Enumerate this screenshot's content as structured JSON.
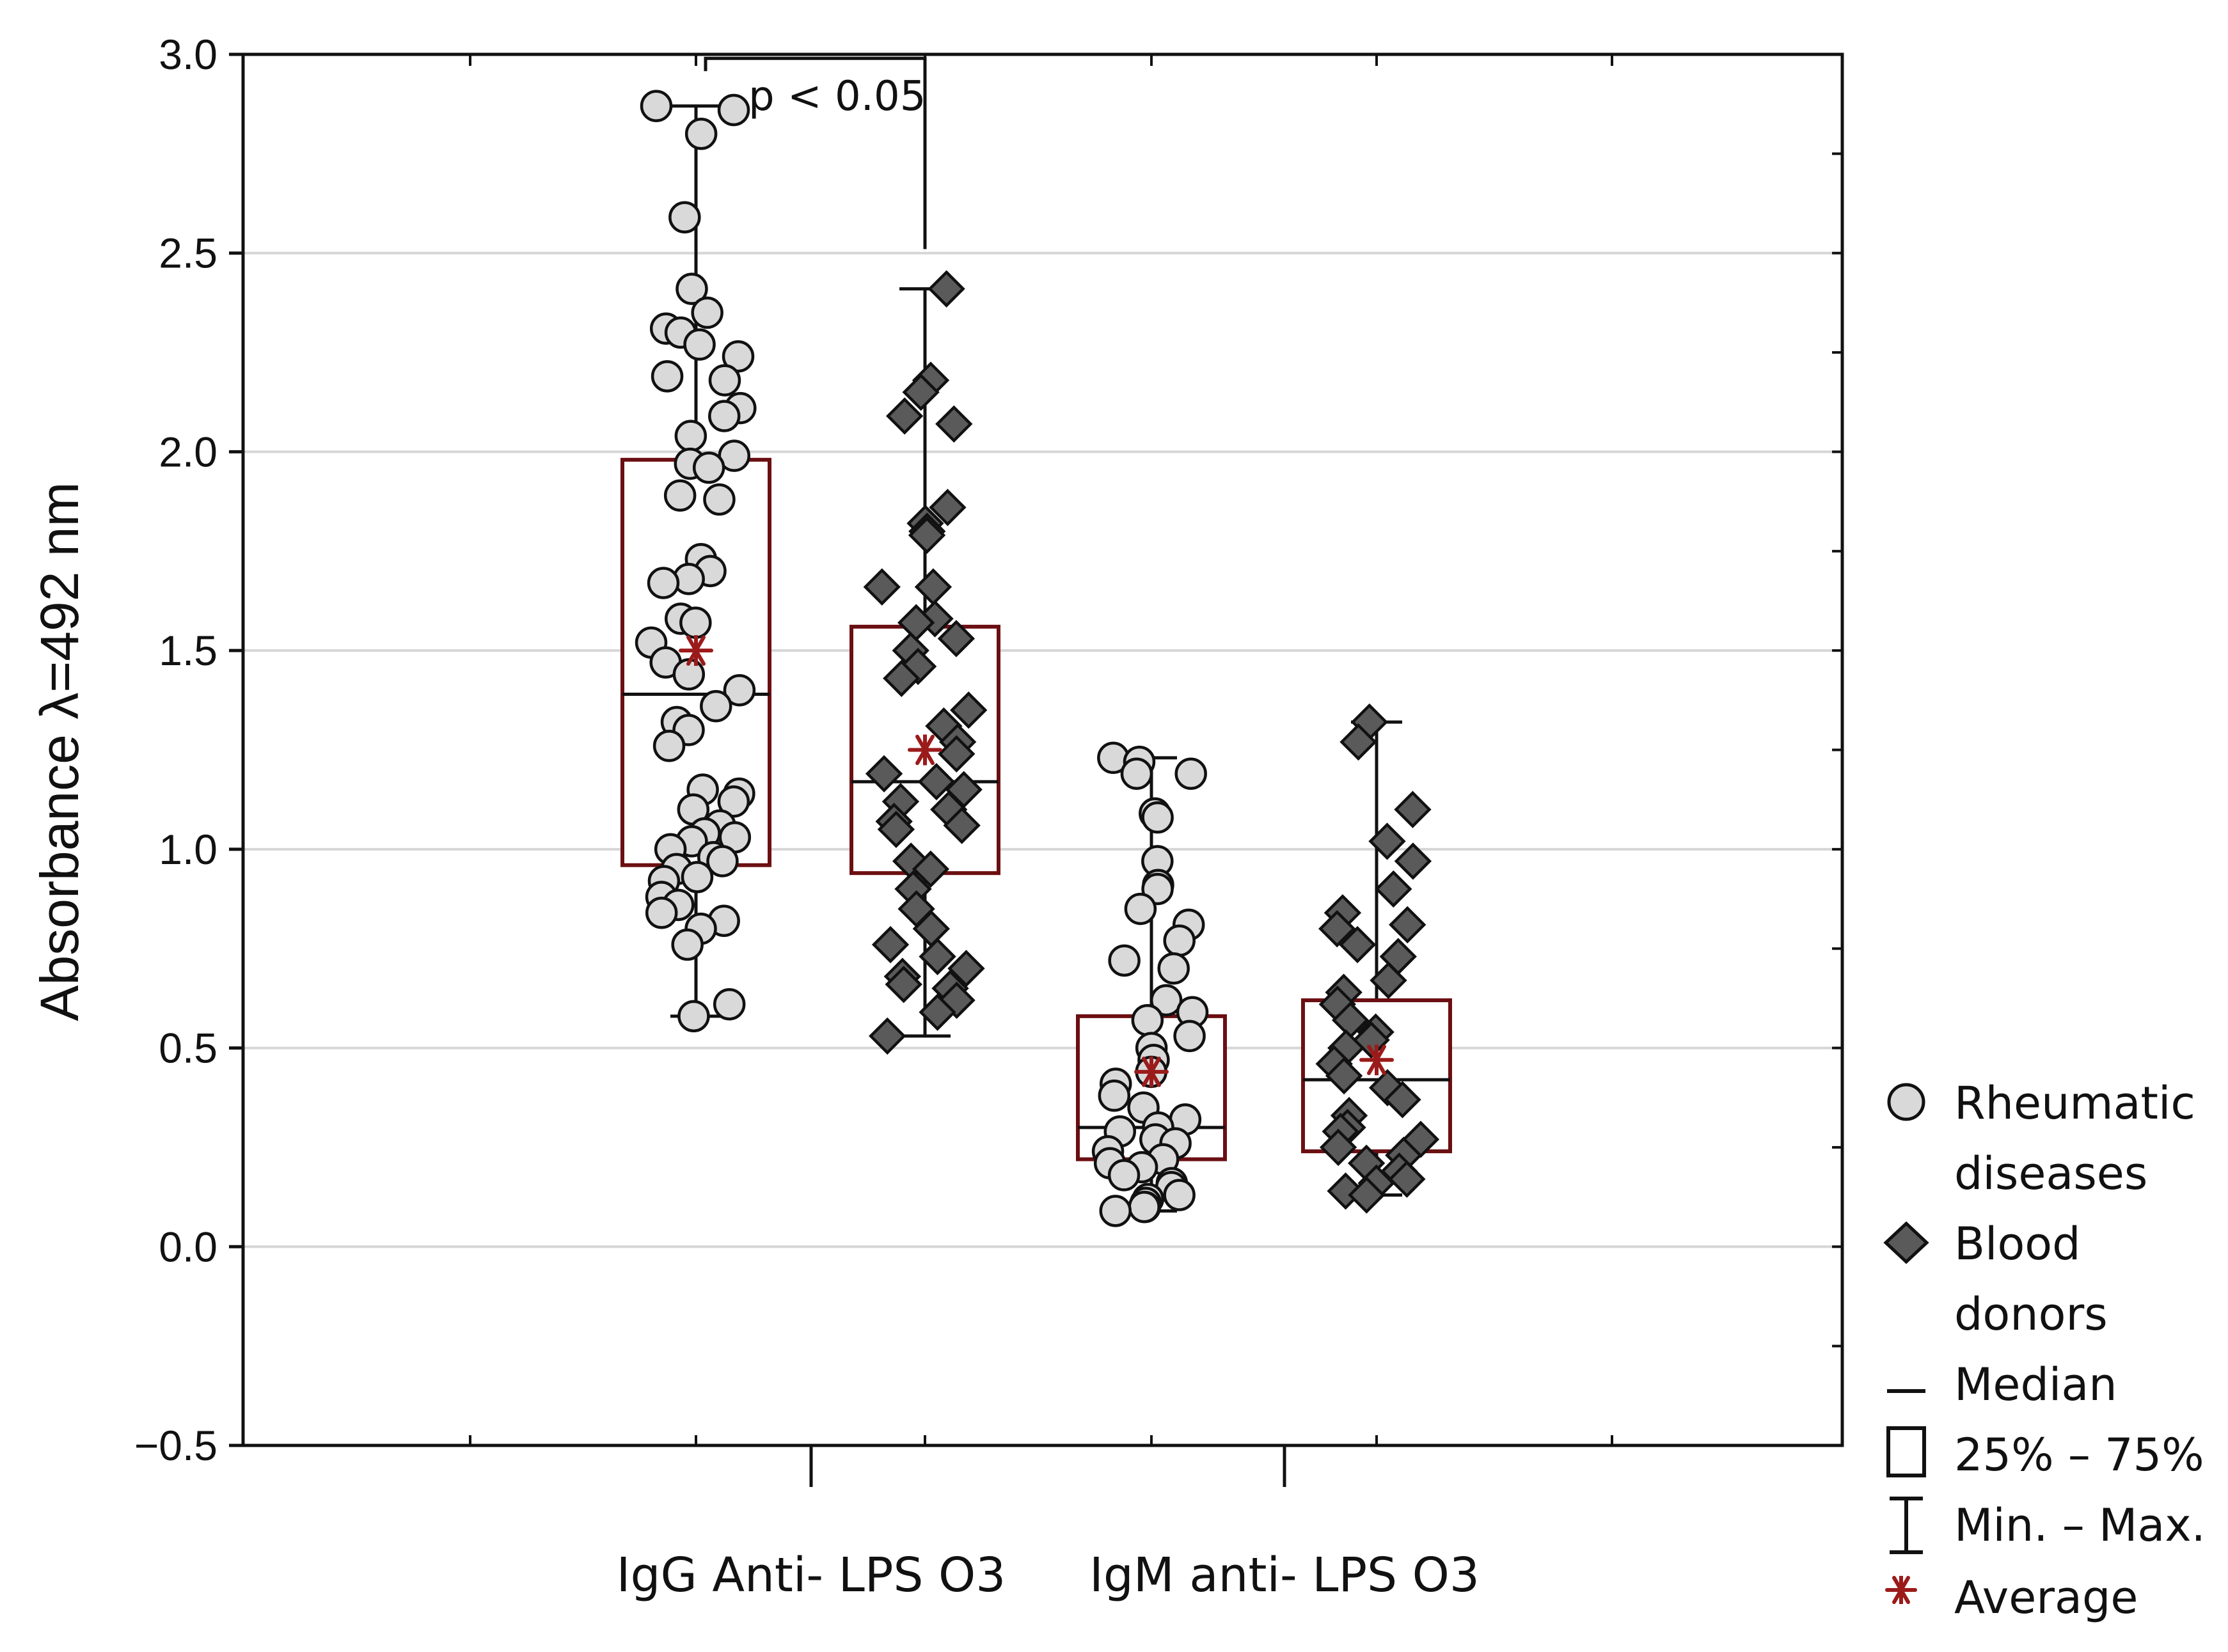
{
  "chart_data": {
    "type": "box",
    "ylabel": "Absorbance λ=492 nm",
    "ylim": [
      -0.5,
      3.0
    ],
    "yticks": [
      "−0.5",
      "0.0",
      "0.5",
      "1.0",
      "1.5",
      "2.0",
      "2.5",
      "3.0"
    ],
    "ytick_values": [
      -0.5,
      0.0,
      0.5,
      1.0,
      1.5,
      2.0,
      2.5,
      3.0
    ],
    "grid": true,
    "categories": [
      "IgG Anti- LPS O3",
      "IgM anti- LPS O3"
    ],
    "series": [
      {
        "name": "Rheumatic diseases",
        "marker": "circle"
      },
      {
        "name": "Blood donors",
        "marker": "diamond"
      }
    ],
    "boxes": [
      {
        "category": "IgG Anti- LPS O3",
        "series": "Rheumatic diseases",
        "min": 0.58,
        "q1": 0.96,
        "median": 1.39,
        "q3": 1.98,
        "max": 2.87,
        "mean": 1.5,
        "points": [
          2.86,
          2.87,
          2.8,
          2.59,
          2.41,
          2.35,
          2.31,
          2.3,
          2.27,
          2.24,
          2.18,
          2.19,
          2.11,
          2.09,
          2.04,
          1.99,
          1.97,
          1.96,
          1.89,
          1.88,
          1.73,
          1.7,
          1.68,
          1.67,
          1.58,
          1.57,
          1.52,
          1.47,
          1.44,
          1.4,
          1.36,
          1.32,
          1.3,
          1.26,
          1.15,
          1.14,
          1.12,
          1.1,
          1.06,
          1.04,
          1.03,
          1.02,
          1.0,
          0.98,
          0.97,
          0.95,
          0.93,
          0.92,
          0.88,
          0.86,
          0.84,
          0.82,
          0.8,
          0.76,
          0.61,
          0.58
        ]
      },
      {
        "category": "IgG Anti- LPS O3",
        "series": "Blood donors",
        "min": 0.53,
        "q1": 0.94,
        "median": 1.17,
        "q3": 1.56,
        "max": 2.41,
        "mean": 1.25,
        "points": [
          2.41,
          2.18,
          2.15,
          2.09,
          2.07,
          1.86,
          1.82,
          1.8,
          1.79,
          1.66,
          1.66,
          1.58,
          1.57,
          1.53,
          1.5,
          1.46,
          1.43,
          1.35,
          1.31,
          1.27,
          1.24,
          1.19,
          1.17,
          1.15,
          1.12,
          1.1,
          1.07,
          1.06,
          1.05,
          0.97,
          0.95,
          0.9,
          0.85,
          0.8,
          0.76,
          0.73,
          0.7,
          0.68,
          0.66,
          0.65,
          0.62,
          0.59,
          0.53
        ]
      },
      {
        "category": "IgM anti- LPS O3",
        "series": "Rheumatic diseases",
        "min": 0.09,
        "q1": 0.22,
        "median": 0.3,
        "q3": 0.58,
        "max": 1.23,
        "mean": 0.44,
        "points": [
          1.23,
          1.22,
          1.19,
          1.19,
          1.09,
          1.08,
          0.97,
          0.91,
          0.9,
          0.85,
          0.81,
          0.77,
          0.72,
          0.7,
          0.62,
          0.59,
          0.57,
          0.53,
          0.5,
          0.47,
          0.44,
          0.41,
          0.38,
          0.35,
          0.32,
          0.3,
          0.29,
          0.27,
          0.26,
          0.24,
          0.22,
          0.21,
          0.2,
          0.18,
          0.16,
          0.15,
          0.13,
          0.12,
          0.11,
          0.1,
          0.1,
          0.09
        ]
      },
      {
        "category": "IgM anti- LPS O3",
        "series": "Blood donors",
        "min": 0.13,
        "q1": 0.24,
        "median": 0.42,
        "q3": 0.62,
        "max": 1.32,
        "mean": 0.47,
        "points": [
          1.32,
          1.27,
          1.1,
          1.02,
          0.97,
          0.9,
          0.84,
          0.81,
          0.8,
          0.76,
          0.73,
          0.67,
          0.64,
          0.61,
          0.57,
          0.54,
          0.52,
          0.5,
          0.46,
          0.43,
          0.4,
          0.37,
          0.33,
          0.3,
          0.29,
          0.27,
          0.25,
          0.23,
          0.21,
          0.19,
          0.17,
          0.16,
          0.14,
          0.13
        ]
      }
    ],
    "annotations": [
      {
        "text": "p < 0.05",
        "between": [
          "Rheumatic diseases",
          "Blood donors"
        ],
        "category": "IgG Anti- LPS O3"
      }
    ],
    "legend": {
      "position": "right",
      "items": [
        {
          "lines": [
            "Rheumatic",
            "diseases"
          ],
          "symbol": "circle"
        },
        {
          "lines": [
            "Blood",
            "donors"
          ],
          "symbol": "diamond"
        },
        {
          "lines": [
            "Median"
          ],
          "symbol": "line"
        },
        {
          "lines": [
            "25% – 75%"
          ],
          "symbol": "box"
        },
        {
          "lines": [
            "Min. – Max."
          ],
          "symbol": "whisker"
        },
        {
          "lines": [
            "Average"
          ],
          "symbol": "asterisk"
        }
      ]
    }
  },
  "colors": {
    "circle_fill": "#d9d9d9",
    "diamond_fill": "#5a5a5a",
    "marker_stroke": "#111111",
    "box_edge": "#6b0f12",
    "mean": "#9b1b1b",
    "grid": "#d6d6d6",
    "axis": "#111111"
  }
}
